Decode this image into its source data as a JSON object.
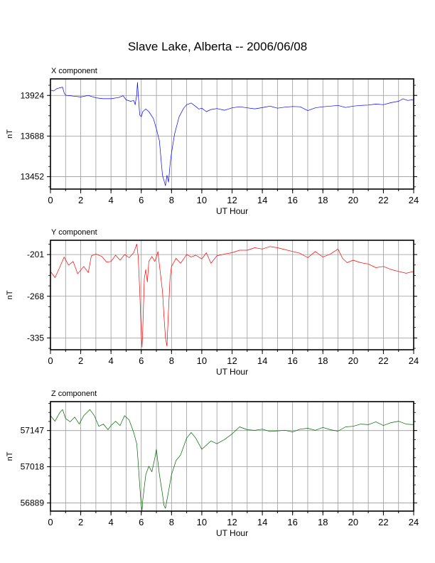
{
  "figure": {
    "title": "Slave Lake, Alberta -- 2006/06/08"
  },
  "chart_data": [
    {
      "type": "line",
      "panel_title": "X component",
      "xlabel": "UT Hour",
      "ylabel": "nT",
      "xlim": [
        0,
        24
      ],
      "ylim": [
        13380,
        14020
      ],
      "x_ticks": [
        0,
        2,
        4,
        6,
        8,
        10,
        12,
        14,
        16,
        18,
        20,
        22,
        24
      ],
      "y_ticks": [
        13452,
        13688,
        13924
      ],
      "grid": true,
      "series": [
        {
          "color": "#0000ff",
          "points": [
            [
              0,
              13955
            ],
            [
              0.2,
              13950
            ],
            [
              0.4,
              13962
            ],
            [
              0.6,
              13968
            ],
            [
              0.8,
              13972
            ],
            [
              0.9,
              13940
            ],
            [
              1.0,
              13925
            ],
            [
              1.5,
              13920
            ],
            [
              2.0,
              13915
            ],
            [
              2.5,
              13924
            ],
            [
              3.0,
              13910
            ],
            [
              3.5,
              13905
            ],
            [
              4.0,
              13905
            ],
            [
              4.5,
              13912
            ],
            [
              4.8,
              13922
            ],
            [
              5.0,
              13898
            ],
            [
              5.3,
              13890
            ],
            [
              5.5,
              13895
            ],
            [
              5.6,
              13870
            ],
            [
              5.7,
              13930
            ],
            [
              5.75,
              14000
            ],
            [
              5.8,
              13930
            ],
            [
              5.9,
              13810
            ],
            [
              6.0,
              13800
            ],
            [
              6.1,
              13830
            ],
            [
              6.3,
              13845
            ],
            [
              6.5,
              13830
            ],
            [
              6.8,
              13790
            ],
            [
              7.0,
              13730
            ],
            [
              7.2,
              13660
            ],
            [
              7.3,
              13560
            ],
            [
              7.4,
              13460
            ],
            [
              7.5,
              13430
            ],
            [
              7.6,
              13400
            ],
            [
              7.7,
              13460
            ],
            [
              7.8,
              13420
            ],
            [
              7.9,
              13520
            ],
            [
              8.0,
              13590
            ],
            [
              8.2,
              13700
            ],
            [
              8.5,
              13800
            ],
            [
              8.8,
              13850
            ],
            [
              9.0,
              13870
            ],
            [
              9.3,
              13880
            ],
            [
              9.6,
              13860
            ],
            [
              9.8,
              13845
            ],
            [
              10.0,
              13850
            ],
            [
              10.3,
              13830
            ],
            [
              10.6,
              13842
            ],
            [
              11.0,
              13848
            ],
            [
              11.5,
              13838
            ],
            [
              12.0,
              13852
            ],
            [
              12.5,
              13858
            ],
            [
              13.0,
              13852
            ],
            [
              13.5,
              13846
            ],
            [
              14.0,
              13853
            ],
            [
              14.5,
              13862
            ],
            [
              15.0,
              13850
            ],
            [
              15.5,
              13856
            ],
            [
              16.0,
              13860
            ],
            [
              16.5,
              13858
            ],
            [
              17.0,
              13836
            ],
            [
              17.5,
              13852
            ],
            [
              18.0,
              13858
            ],
            [
              18.5,
              13862
            ],
            [
              19.0,
              13866
            ],
            [
              19.5,
              13854
            ],
            [
              20.0,
              13862
            ],
            [
              20.5,
              13866
            ],
            [
              21.0,
              13868
            ],
            [
              21.5,
              13874
            ],
            [
              22.0,
              13870
            ],
            [
              22.5,
              13882
            ],
            [
              23.0,
              13890
            ],
            [
              23.3,
              13905
            ],
            [
              23.6,
              13895
            ],
            [
              24.0,
              13900
            ]
          ]
        }
      ]
    },
    {
      "type": "line",
      "panel_title": "Y component",
      "xlabel": "UT Hour",
      "ylabel": "nT",
      "xlim": [
        0,
        24
      ],
      "ylim": [
        -354,
        -178
      ],
      "x_ticks": [
        0,
        2,
        4,
        6,
        8,
        10,
        12,
        14,
        16,
        18,
        20,
        22,
        24
      ],
      "y_ticks": [
        -335,
        -268,
        -201
      ],
      "grid": true,
      "series": [
        {
          "color": "#ff0000",
          "points": [
            [
              0,
              -228
            ],
            [
              0.3,
              -238
            ],
            [
              0.6,
              -222
            ],
            [
              0.9,
              -205
            ],
            [
              1.2,
              -218
            ],
            [
              1.5,
              -212
            ],
            [
              1.8,
              -232
            ],
            [
              2.2,
              -220
            ],
            [
              2.5,
              -230
            ],
            [
              2.7,
              -203
            ],
            [
              3.0,
              -200
            ],
            [
              3.4,
              -204
            ],
            [
              3.7,
              -213
            ],
            [
              4.0,
              -212
            ],
            [
              4.3,
              -202
            ],
            [
              4.6,
              -210
            ],
            [
              4.9,
              -201
            ],
            [
              5.2,
              -206
            ],
            [
              5.5,
              -198
            ],
            [
              5.7,
              -184
            ],
            [
              5.8,
              -205
            ],
            [
              5.9,
              -260
            ],
            [
              6.0,
              -330
            ],
            [
              6.05,
              -350
            ],
            [
              6.1,
              -320
            ],
            [
              6.2,
              -240
            ],
            [
              6.3,
              -225
            ],
            [
              6.4,
              -245
            ],
            [
              6.5,
              -212
            ],
            [
              6.7,
              -204
            ],
            [
              6.9,
              -212
            ],
            [
              7.1,
              -196
            ],
            [
              7.2,
              -218
            ],
            [
              7.4,
              -260
            ],
            [
              7.5,
              -300
            ],
            [
              7.6,
              -335
            ],
            [
              7.7,
              -348
            ],
            [
              7.8,
              -290
            ],
            [
              7.9,
              -240
            ],
            [
              8.0,
              -220
            ],
            [
              8.3,
              -207
            ],
            [
              8.6,
              -215
            ],
            [
              9.0,
              -201
            ],
            [
              9.3,
              -205
            ],
            [
              9.6,
              -202
            ],
            [
              10.0,
              -208
            ],
            [
              10.3,
              -198
            ],
            [
              10.6,
              -215
            ],
            [
              11.0,
              -203
            ],
            [
              11.5,
              -200
            ],
            [
              12.0,
              -198
            ],
            [
              12.5,
              -194
            ],
            [
              13.0,
              -194
            ],
            [
              13.5,
              -190
            ],
            [
              14.0,
              -192
            ],
            [
              14.5,
              -188
            ],
            [
              15.0,
              -190
            ],
            [
              15.5,
              -193
            ],
            [
              16.0,
              -196
            ],
            [
              16.5,
              -199
            ],
            [
              17.0,
              -206
            ],
            [
              17.5,
              -196
            ],
            [
              18.0,
              -205
            ],
            [
              18.5,
              -200
            ],
            [
              19.0,
              -192
            ],
            [
              19.3,
              -207
            ],
            [
              19.6,
              -214
            ],
            [
              20.0,
              -210
            ],
            [
              20.5,
              -214
            ],
            [
              21.0,
              -216
            ],
            [
              21.5,
              -222
            ],
            [
              22.0,
              -220
            ],
            [
              22.5,
              -225
            ],
            [
              23.0,
              -228
            ],
            [
              23.5,
              -231
            ],
            [
              24.0,
              -228
            ]
          ]
        }
      ]
    },
    {
      "type": "line",
      "panel_title": "Z component",
      "xlabel": "UT Hour",
      "ylabel": "nT",
      "xlim": [
        0,
        24
      ],
      "ylim": [
        56860,
        57250
      ],
      "x_ticks": [
        0,
        2,
        4,
        6,
        8,
        10,
        12,
        14,
        16,
        18,
        20,
        22,
        24
      ],
      "y_ticks": [
        56889,
        57018,
        57147
      ],
      "grid": true,
      "series": [
        {
          "color": "#006400",
          "points": [
            [
              0,
              57200
            ],
            [
              0.3,
              57180
            ],
            [
              0.6,
              57210
            ],
            [
              0.8,
              57222
            ],
            [
              1.0,
              57190
            ],
            [
              1.3,
              57178
            ],
            [
              1.6,
              57195
            ],
            [
              1.9,
              57170
            ],
            [
              2.2,
              57200
            ],
            [
              2.6,
              57222
            ],
            [
              2.9,
              57200
            ],
            [
              3.2,
              57162
            ],
            [
              3.5,
              57170
            ],
            [
              3.8,
              57150
            ],
            [
              4.0,
              57165
            ],
            [
              4.3,
              57180
            ],
            [
              4.6,
              57165
            ],
            [
              4.9,
              57200
            ],
            [
              5.2,
              57185
            ],
            [
              5.5,
              57140
            ],
            [
              5.7,
              57100
            ],
            [
              5.8,
              57030
            ],
            [
              5.9,
              56950
            ],
            [
              6.0,
              56880
            ],
            [
              6.05,
              56862
            ],
            [
              6.1,
              56900
            ],
            [
              6.3,
              56990
            ],
            [
              6.5,
              57020
            ],
            [
              6.7,
              57000
            ],
            [
              6.9,
              57050
            ],
            [
              7.0,
              57080
            ],
            [
              7.2,
              56990
            ],
            [
              7.4,
              56920
            ],
            [
              7.5,
              56880
            ],
            [
              7.6,
              56870
            ],
            [
              7.7,
              56900
            ],
            [
              7.8,
              56930
            ],
            [
              8.0,
              56990
            ],
            [
              8.3,
              57040
            ],
            [
              8.6,
              57060
            ],
            [
              9.0,
              57120
            ],
            [
              9.3,
              57140
            ],
            [
              9.6,
              57120
            ],
            [
              10.0,
              57080
            ],
            [
              10.3,
              57095
            ],
            [
              10.6,
              57110
            ],
            [
              11.0,
              57100
            ],
            [
              11.5,
              57115
            ],
            [
              12.0,
              57135
            ],
            [
              12.5,
              57160
            ],
            [
              13.0,
              57150
            ],
            [
              13.5,
              57148
            ],
            [
              14.0,
              57152
            ],
            [
              14.5,
              57144
            ],
            [
              15.0,
              57146
            ],
            [
              15.5,
              57148
            ],
            [
              16.0,
              57142
            ],
            [
              16.5,
              57152
            ],
            [
              17.0,
              57155
            ],
            [
              17.5,
              57148
            ],
            [
              18.0,
              57158
            ],
            [
              18.5,
              57150
            ],
            [
              19.0,
              57145
            ],
            [
              19.5,
              57160
            ],
            [
              20.0,
              57162
            ],
            [
              20.5,
              57170
            ],
            [
              21.0,
              57168
            ],
            [
              21.5,
              57178
            ],
            [
              22.0,
              57165
            ],
            [
              22.5,
              57175
            ],
            [
              23.0,
              57180
            ],
            [
              23.5,
              57170
            ],
            [
              24.0,
              57168
            ]
          ]
        }
      ]
    }
  ]
}
